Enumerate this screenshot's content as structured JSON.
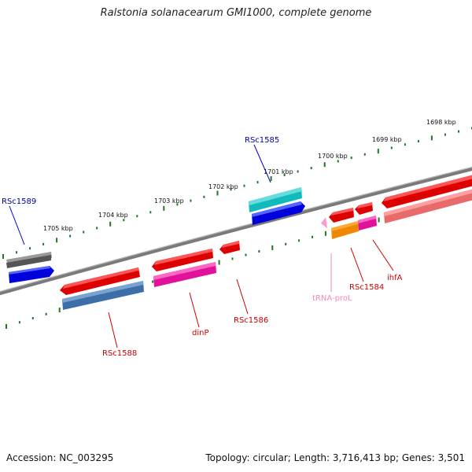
{
  "title": "Ralstonia solanacearum GMI1000, complete genome",
  "footer": {
    "accession": "Accession: NC_003295",
    "topology": "Topology: circular; Length: 3,716,413 bp; Genes: 3,501"
  },
  "colors": {
    "backbone": "#808080",
    "tick": "#227722",
    "label_blue": "#0000aa",
    "label_red": "#cc0000",
    "label_pink": "#ee88bb"
  },
  "scale_labels": [
    "1698 kbp",
    "1699 kbp",
    "1700 kbp",
    "1701 kbp",
    "1702 kbp",
    "1703 kbp",
    "1704 kbp",
    "1705 kbp"
  ],
  "gene_labels": [
    {
      "text": "RSc1589",
      "color": "#0000aa"
    },
    {
      "text": "RSc1585",
      "color": "#0000aa"
    },
    {
      "text": "RSc1588",
      "color": "#cc0000"
    },
    {
      "text": "dinP",
      "color": "#cc0000"
    },
    {
      "text": "RSc1586",
      "color": "#cc0000"
    },
    {
      "text": "tRNA-proL",
      "color": "#ee88bb"
    },
    {
      "text": "RSc1584",
      "color": "#cc0000"
    },
    {
      "text": "ihfA",
      "color": "#cc0000"
    }
  ]
}
